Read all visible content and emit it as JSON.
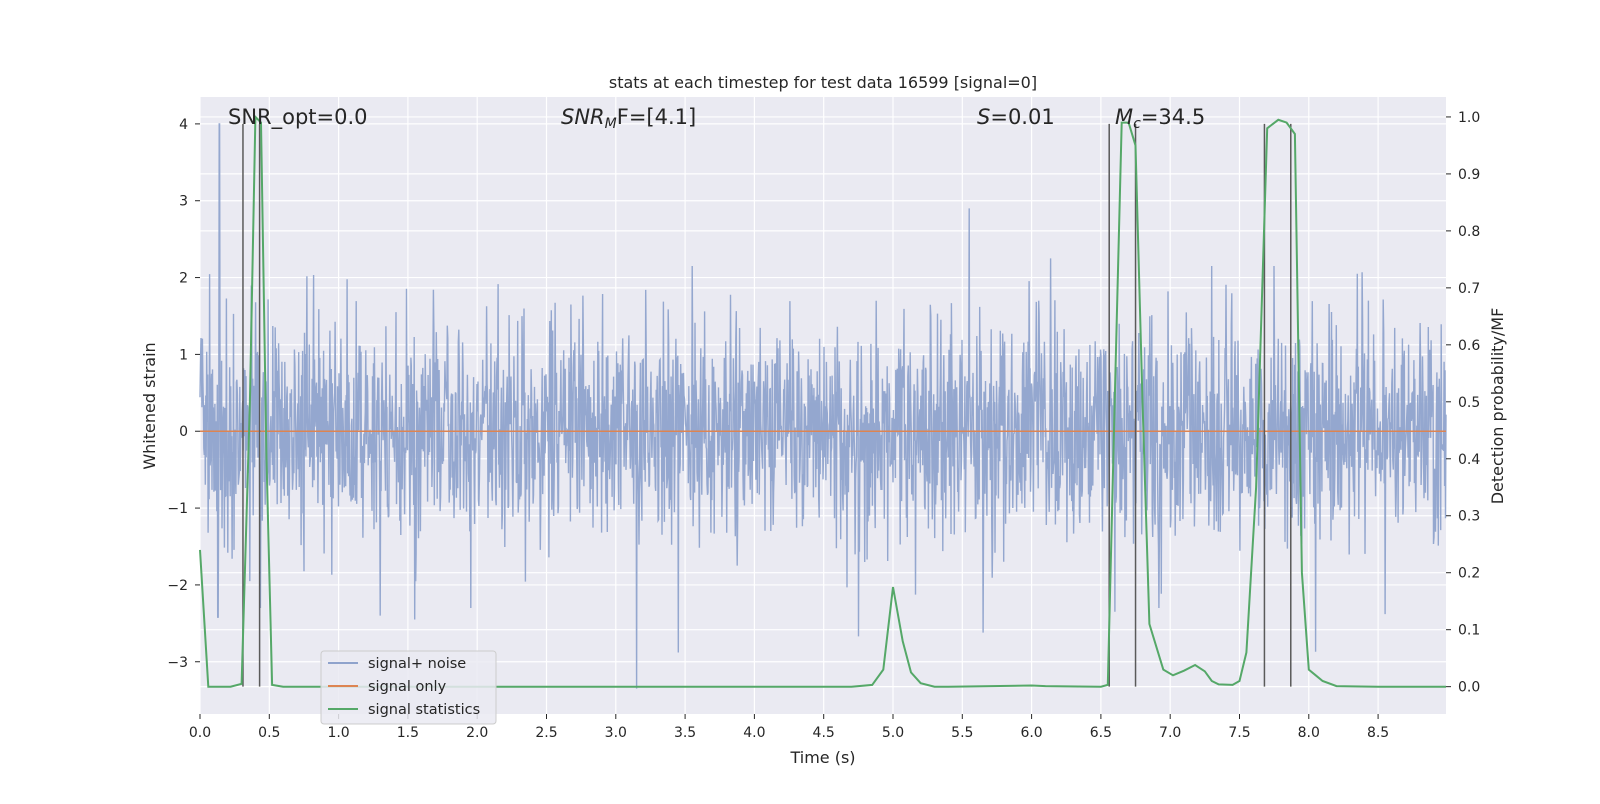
{
  "chart_data": {
    "type": "line",
    "title": "stats at each timestep for test data 16599 [signal=0]",
    "xlabel": "Time (s)",
    "ylabel": "Whitened strain",
    "y2label": "Detection probability/MF",
    "xlim": [
      0.0,
      8.99
    ],
    "ylim": [
      -3.68,
      4.35
    ],
    "y2lim": [
      -0.048,
      1.035
    ],
    "x_ticks": [
      0.0,
      0.5,
      1.0,
      1.5,
      2.0,
      2.5,
      3.0,
      3.5,
      4.0,
      4.5,
      5.0,
      5.5,
      6.0,
      6.5,
      7.0,
      7.5,
      8.0,
      8.5
    ],
    "x_tick_labels": [
      "0.0",
      "0.5",
      "1.0",
      "1.5",
      "2.0",
      "2.5",
      "3.0",
      "3.5",
      "4.0",
      "4.5",
      "5.0",
      "5.5",
      "6.0",
      "6.5",
      "7.0",
      "7.5",
      "8.0",
      "8.5"
    ],
    "y_ticks": [
      -3,
      -2,
      -1,
      0,
      1,
      2,
      3,
      4
    ],
    "y_tick_labels": [
      "−3",
      "−2",
      "−1",
      "0",
      "1",
      "2",
      "3",
      "4"
    ],
    "y2_ticks": [
      0.0,
      0.1,
      0.2,
      0.3,
      0.4,
      0.5,
      0.6,
      0.7,
      0.8,
      0.9,
      1.0
    ],
    "y2_tick_labels": [
      "0.0",
      "0.1",
      "0.2",
      "0.3",
      "0.4",
      "0.5",
      "0.6",
      "0.7",
      "0.8",
      "0.9",
      "1.0"
    ],
    "annotations": {
      "snr_opt": "SNR_opt=0.0",
      "snr_mf_sym": "SNR",
      "snr_mf_sub": "M",
      "snr_mf_rest": "F=[4.1]",
      "s_sym": "S",
      "s_rest": "=0.01",
      "mc_sym": "M",
      "mc_sub": "c",
      "mc_rest": "=34.5"
    },
    "legend": {
      "location": "lower-left",
      "entries": [
        "signal+ noise",
        "signal only",
        "signal statistics"
      ]
    },
    "colors": {
      "noise": "#8fa3cc",
      "signal": "#dd8452",
      "stats": "#55a868",
      "background": "#eaeaf2",
      "grid": "#ffffff",
      "vline": "#5a5a5a"
    },
    "noise_series": {
      "name": "signal+ noise",
      "duration": 8.99,
      "spikes": [
        [
          0.14,
          4.0
        ],
        [
          0.4,
          1.68
        ],
        [
          3.55,
          2.15
        ],
        [
          5.55,
          2.9
        ],
        [
          6.6,
          2.25
        ],
        [
          7.3,
          2.15
        ],
        [
          7.75,
          2.15
        ],
        [
          8.05,
          2.35
        ],
        [
          8.35,
          2.05
        ]
      ],
      "dips": [
        [
          0.13,
          -2.42
        ],
        [
          1.3,
          -2.4
        ],
        [
          1.55,
          -2.45
        ],
        [
          3.15,
          -3.35
        ],
        [
          3.45,
          -2.88
        ],
        [
          4.75,
          -2.67
        ],
        [
          5.65,
          -2.62
        ],
        [
          6.6,
          -2.35
        ],
        [
          8.05,
          -2.87
        ],
        [
          8.55,
          -2.38
        ]
      ]
    },
    "signal_series": {
      "name": "signal only",
      "x": [
        0.0,
        8.99
      ],
      "y": [
        0.0,
        0.0
      ]
    },
    "stats_series": {
      "name": "signal statistics",
      "x": [
        0.0,
        0.06,
        0.12,
        0.22,
        0.3,
        0.36,
        0.4,
        0.44,
        0.48,
        0.52,
        0.6,
        1.0,
        2.0,
        3.0,
        4.0,
        4.7,
        4.85,
        4.93,
        5.0,
        5.07,
        5.13,
        5.2,
        5.3,
        5.4,
        6.0,
        6.1,
        6.5,
        6.55,
        6.6,
        6.65,
        6.7,
        6.75,
        6.8,
        6.85,
        6.95,
        7.02,
        7.1,
        7.18,
        7.25,
        7.3,
        7.35,
        7.45,
        7.5,
        7.55,
        7.62,
        7.7,
        7.78,
        7.84,
        7.9,
        7.95,
        8.0,
        8.05,
        8.1,
        8.2,
        8.5,
        8.99
      ],
      "y": [
        0.24,
        0.0,
        0.0,
        0.0,
        0.005,
        0.5,
        1.0,
        0.99,
        0.4,
        0.003,
        0.0,
        0.0,
        0.0,
        0.0,
        0.0,
        0.0,
        0.003,
        0.03,
        0.175,
        0.08,
        0.025,
        0.006,
        0.0,
        0.0,
        0.002,
        0.001,
        0.0,
        0.003,
        0.5,
        0.99,
        0.99,
        0.95,
        0.5,
        0.11,
        0.03,
        0.02,
        0.028,
        0.038,
        0.027,
        0.01,
        0.004,
        0.003,
        0.01,
        0.06,
        0.35,
        0.98,
        0.995,
        0.99,
        0.97,
        0.2,
        0.03,
        0.02,
        0.01,
        0.001,
        0.0,
        0.0
      ]
    },
    "vlines": [
      0.31,
      0.43,
      6.56,
      6.75,
      7.68,
      7.87
    ]
  }
}
